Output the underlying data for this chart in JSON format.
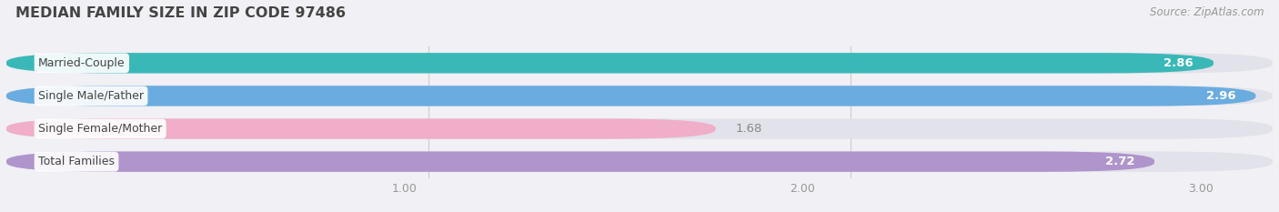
{
  "title": "MEDIAN FAMILY SIZE IN ZIP CODE 97486",
  "source": "Source: ZipAtlas.com",
  "categories": [
    "Married-Couple",
    "Single Male/Father",
    "Single Female/Mother",
    "Total Families"
  ],
  "values": [
    2.86,
    2.96,
    1.68,
    2.72
  ],
  "bar_colors": [
    "#3ab8b8",
    "#6aace0",
    "#f0aec8",
    "#b094cc"
  ],
  "xlim_data": [
    0,
    3.0
  ],
  "xlim_display": [
    0,
    3.18
  ],
  "xticks": [
    1.0,
    2.0,
    3.0
  ],
  "xtick_labels": [
    "1.00",
    "2.00",
    "3.00"
  ],
  "bar_height": 0.62,
  "bar_gap": 0.18,
  "value_label_inside": [
    true,
    true,
    false,
    true
  ],
  "background_color": "#f0f0f5",
  "bar_bg_color": "#e2e2ea",
  "title_color": "#444444",
  "source_color": "#999999",
  "label_text_color": "#444444",
  "value_text_color_inside": "#ffffff",
  "value_text_color_outside": "#888888"
}
